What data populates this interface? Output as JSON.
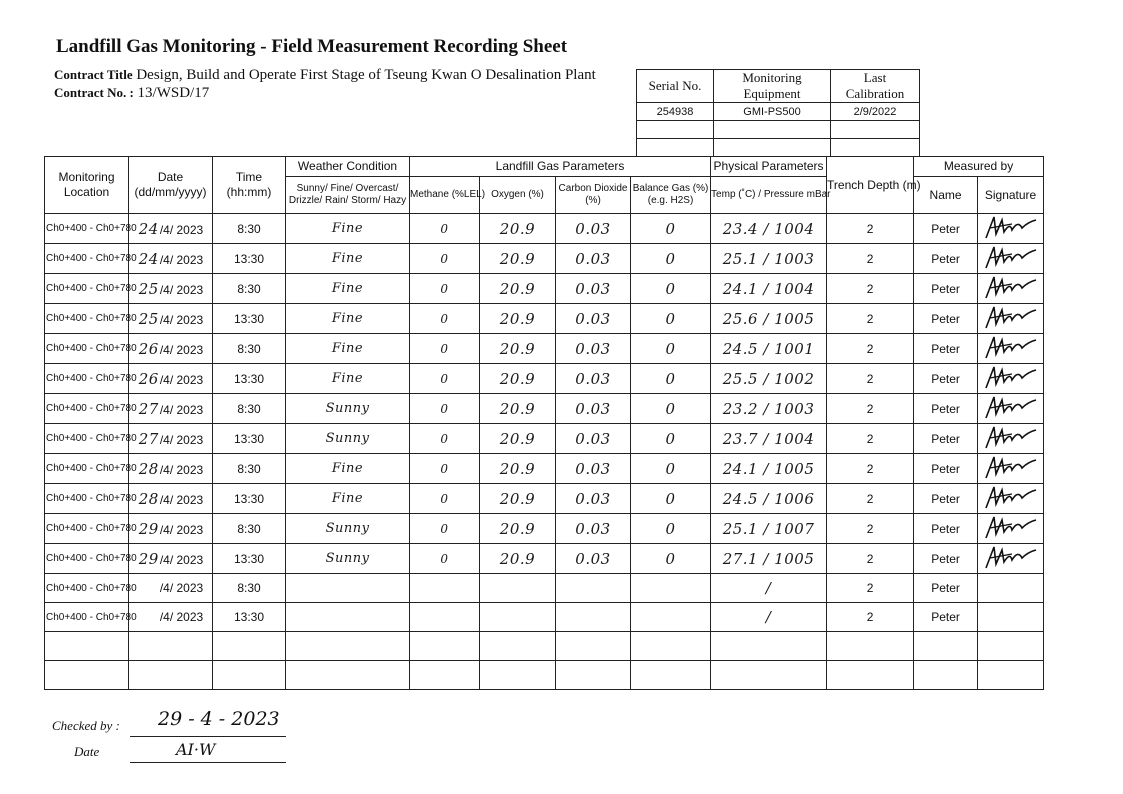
{
  "title": "Landfill Gas Monitoring - Field Measurement Recording Sheet",
  "contract": {
    "title_label": "Contract Title",
    "title_value": "Design, Build and Operate First Stage of Tseung Kwan O Desalination Plant",
    "no_label": "Contract No. :",
    "no_value": "13/WSD/17"
  },
  "equipment": {
    "headers": [
      "Serial No.",
      "Monitoring Equipment",
      "Last Calibration"
    ],
    "rows": [
      [
        "254938",
        "GMI-PS500",
        "2/9/2022"
      ],
      [
        "",
        "",
        ""
      ],
      [
        "",
        "",
        ""
      ]
    ]
  },
  "table": {
    "headers": {
      "location": "Monitoring Location",
      "date": "Date (dd/mm/yyyy)",
      "time": "Time (hh:mm)",
      "weather_group": "Weather Condition",
      "weather": "Sunny/ Fine/ Overcast/ Drizzle/ Rain/ Storm/ Hazy",
      "gas_group": "Landfill Gas Parameters",
      "methane": "Methane (%LEL)",
      "oxygen": "Oxygen (%)",
      "co2": "Carbon Dioxide (%)",
      "balance": "Balance Gas (%) (e.g. H2S)",
      "physical_group": "Physical Parameters",
      "temp": "Temp (˚C) / Pressure mBar",
      "trench": "Trench Depth (m)",
      "measured_group": "Measured by",
      "name": "Name",
      "signature": "Signature"
    },
    "rows": [
      {
        "location": "Ch0+400 - Ch0+780",
        "day": "24",
        "date": "/4/ 2023",
        "time": "8:30",
        "weather": "Fine",
        "methane": "0",
        "oxygen": "20.9",
        "co2": "0.03",
        "balance": "0",
        "temp_pressure": "23.4 / 1004",
        "trench": "2",
        "name": "Peter",
        "signed": true
      },
      {
        "location": "Ch0+400 - Ch0+780",
        "day": "24",
        "date": "/4/ 2023",
        "time": "13:30",
        "weather": "Fine",
        "methane": "0",
        "oxygen": "20.9",
        "co2": "0.03",
        "balance": "0",
        "temp_pressure": "25.1 / 1003",
        "trench": "2",
        "name": "Peter",
        "signed": true
      },
      {
        "location": "Ch0+400 - Ch0+780",
        "day": "25",
        "date": "/4/ 2023",
        "time": "8:30",
        "weather": "Fine",
        "methane": "0",
        "oxygen": "20.9",
        "co2": "0.03",
        "balance": "0",
        "temp_pressure": "24.1 / 1004",
        "trench": "2",
        "name": "Peter",
        "signed": true
      },
      {
        "location": "Ch0+400 - Ch0+780",
        "day": "25",
        "date": "/4/ 2023",
        "time": "13:30",
        "weather": "Fine",
        "methane": "0",
        "oxygen": "20.9",
        "co2": "0.03",
        "balance": "0",
        "temp_pressure": "25.6 / 1005",
        "trench": "2",
        "name": "Peter",
        "signed": true
      },
      {
        "location": "Ch0+400 - Ch0+780",
        "day": "26",
        "date": "/4/ 2023",
        "time": "8:30",
        "weather": "Fine",
        "methane": "0",
        "oxygen": "20.9",
        "co2": "0.03",
        "balance": "0",
        "temp_pressure": "24.5 / 1001",
        "trench": "2",
        "name": "Peter",
        "signed": true
      },
      {
        "location": "Ch0+400 - Ch0+780",
        "day": "26",
        "date": "/4/ 2023",
        "time": "13:30",
        "weather": "Fine",
        "methane": "0",
        "oxygen": "20.9",
        "co2": "0.03",
        "balance": "0",
        "temp_pressure": "25.5 / 1002",
        "trench": "2",
        "name": "Peter",
        "signed": true
      },
      {
        "location": "Ch0+400 - Ch0+780",
        "day": "27",
        "date": "/4/ 2023",
        "time": "8:30",
        "weather": "Sunny",
        "methane": "0",
        "oxygen": "20.9",
        "co2": "0.03",
        "balance": "0",
        "temp_pressure": "23.2 / 1003",
        "trench": "2",
        "name": "Peter",
        "signed": true
      },
      {
        "location": "Ch0+400 - Ch0+780",
        "day": "27",
        "date": "/4/ 2023",
        "time": "13:30",
        "weather": "Sunny",
        "methane": "0",
        "oxygen": "20.9",
        "co2": "0.03",
        "balance": "0",
        "temp_pressure": "23.7 / 1004",
        "trench": "2",
        "name": "Peter",
        "signed": true
      },
      {
        "location": "Ch0+400 - Ch0+780",
        "day": "28",
        "date": "/4/ 2023",
        "time": "8:30",
        "weather": "Fine",
        "methane": "0",
        "oxygen": "20.9",
        "co2": "0.03",
        "balance": "0",
        "temp_pressure": "24.1 / 1005",
        "trench": "2",
        "name": "Peter",
        "signed": true
      },
      {
        "location": "Ch0+400 - Ch0+780",
        "day": "28",
        "date": "/4/ 2023",
        "time": "13:30",
        "weather": "Fine",
        "methane": "0",
        "oxygen": "20.9",
        "co2": "0.03",
        "balance": "0",
        "temp_pressure": "24.5 / 1006",
        "trench": "2",
        "name": "Peter",
        "signed": true
      },
      {
        "location": "Ch0+400 - Ch0+780",
        "day": "29",
        "date": "/4/ 2023",
        "time": "8:30",
        "weather": "Sunny",
        "methane": "0",
        "oxygen": "20.9",
        "co2": "0.03",
        "balance": "0",
        "temp_pressure": "25.1 / 1007",
        "trench": "2",
        "name": "Peter",
        "signed": true
      },
      {
        "location": "Ch0+400 - Ch0+780",
        "day": "29",
        "date": "/4/ 2023",
        "time": "13:30",
        "weather": "Sunny",
        "methane": "0",
        "oxygen": "20.9",
        "co2": "0.03",
        "balance": "0",
        "temp_pressure": "27.1 / 1005",
        "trench": "2",
        "name": "Peter",
        "signed": true
      },
      {
        "location": "Ch0+400 - Ch0+780",
        "day": "",
        "date": "/4/ 2023",
        "time": "8:30",
        "weather": "",
        "methane": "",
        "oxygen": "",
        "co2": "",
        "balance": "",
        "temp_pressure": "/",
        "trench": "2",
        "name": "Peter",
        "signed": false
      },
      {
        "location": "Ch0+400 - Ch0+780",
        "day": "",
        "date": "/4/ 2023",
        "time": "13:30",
        "weather": "",
        "methane": "",
        "oxygen": "",
        "co2": "",
        "balance": "",
        "temp_pressure": "/",
        "trench": "2",
        "name": "Peter",
        "signed": false
      },
      {
        "location": "",
        "day": "",
        "date": "",
        "time": "",
        "weather": "",
        "methane": "",
        "oxygen": "",
        "co2": "",
        "balance": "",
        "temp_pressure": "",
        "trench": "",
        "name": "",
        "signed": false
      },
      {
        "location": "",
        "day": "",
        "date": "",
        "time": "",
        "weather": "",
        "methane": "",
        "oxygen": "",
        "co2": "",
        "balance": "",
        "temp_pressure": "",
        "trench": "",
        "name": "",
        "signed": false
      }
    ]
  },
  "footer": {
    "checked_by_label": "Checked by :",
    "checked_by_value": "29 - 4 - 2023",
    "date_label": "Date",
    "date_value": "AI·W"
  }
}
